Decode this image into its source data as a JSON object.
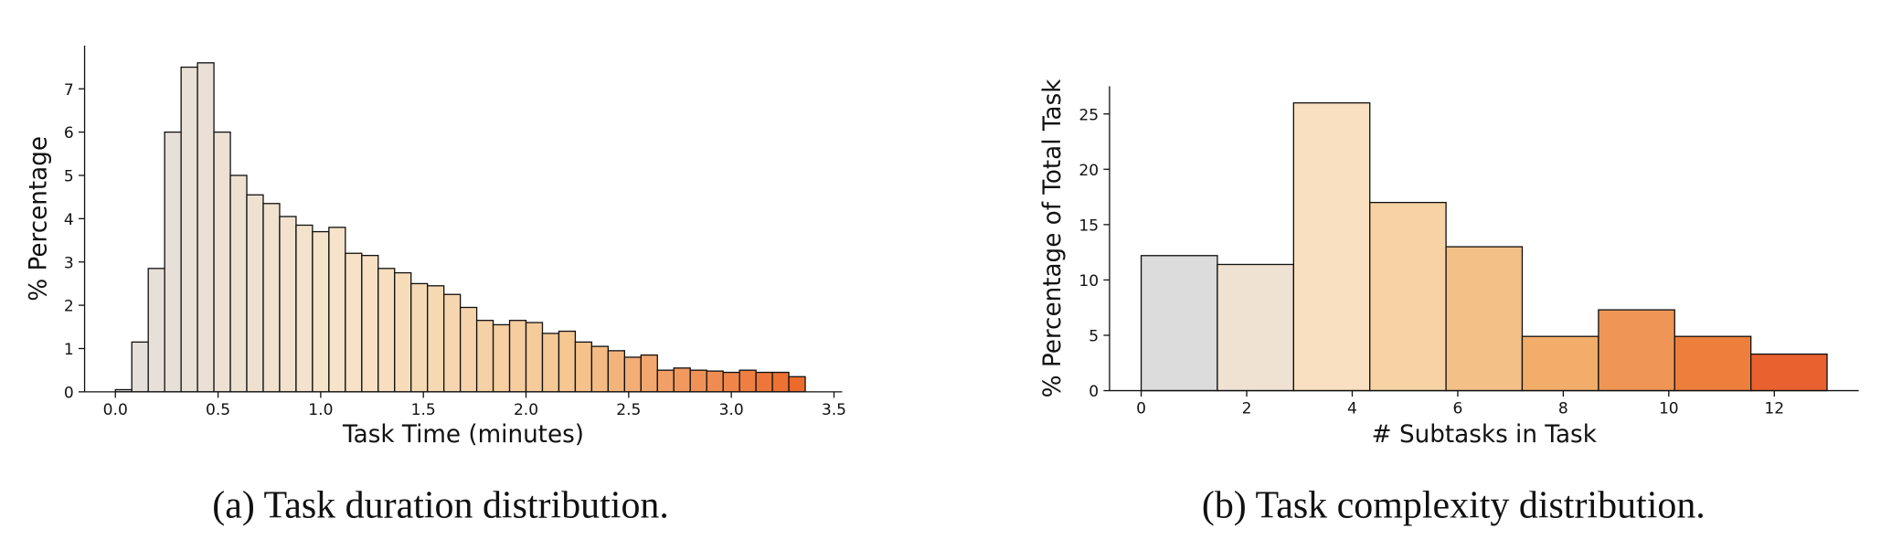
{
  "chart_data": [
    {
      "type": "histogram",
      "xlabel": "Task Time (minutes)",
      "ylabel": "% Percentage",
      "caption": "(a) Task duration distribution.",
      "bins": [
        0,
        0.08,
        0.16,
        0.24,
        0.32,
        0.4,
        0.48,
        0.56,
        0.64,
        0.72,
        0.8,
        0.88,
        0.96,
        1.04,
        1.12,
        1.2,
        1.28,
        1.36,
        1.44,
        1.52,
        1.6,
        1.68,
        1.76,
        1.84,
        1.92,
        2.0,
        2.08,
        2.16,
        2.24,
        2.32,
        2.4,
        2.48,
        2.56,
        2.64,
        2.72,
        2.8,
        2.88,
        2.96,
        3.04,
        3.12,
        3.2,
        3.28,
        3.36
      ],
      "values": [
        0.05,
        1.15,
        2.85,
        6.0,
        7.5,
        7.6,
        6.0,
        5.0,
        4.55,
        4.35,
        4.05,
        3.85,
        3.7,
        3.8,
        3.2,
        3.15,
        2.85,
        2.75,
        2.5,
        2.45,
        2.25,
        1.95,
        1.65,
        1.55,
        1.65,
        1.6,
        1.35,
        1.4,
        1.15,
        1.05,
        0.95,
        0.8,
        0.85,
        0.5,
        0.55,
        0.5,
        0.48,
        0.45,
        0.5,
        0.45,
        0.45,
        0.35
      ],
      "color_stops": [
        "#e3dfdc",
        "#f7e3c8",
        "#f5c690",
        "#ec6a2c"
      ],
      "xlim": [
        -0.15,
        3.54
      ],
      "xticks": [
        {
          "value": 0,
          "label": "0.0"
        },
        0.5,
        {
          "value": 1,
          "label": "1.0"
        },
        1.5,
        {
          "value": 2,
          "label": "2.0"
        },
        2.5,
        {
          "value": 3,
          "label": "3.0"
        },
        3.5
      ],
      "ylim": [
        0,
        8
      ],
      "yticks": [
        0,
        1,
        2,
        3,
        4,
        5,
        6,
        7
      ]
    },
    {
      "type": "histogram",
      "xlabel": "# Subtasks in Task",
      "ylabel": "% Percentage of Total Task",
      "caption": "(b) Task complexity distribution.",
      "bins": [
        0,
        1.444,
        2.889,
        4.333,
        5.778,
        7.222,
        8.667,
        10.111,
        11.556,
        13
      ],
      "values": [
        12.2,
        11.4,
        26,
        17,
        13,
        4.9,
        7.3,
        4.9,
        3.3
      ],
      "colors": [
        "#dcdcdc",
        "#f0e2d3",
        "#f9e0c0",
        "#f7d2a4",
        "#f3c088",
        "#f2ad6a",
        "#ef9657",
        "#ed7e3c",
        "#e9612e"
      ],
      "xlim": [
        -0.6,
        13.6
      ],
      "xticks": [
        0,
        2,
        4,
        6,
        8,
        10,
        12
      ],
      "ylim": [
        0,
        27.5
      ],
      "yticks": [
        0,
        5,
        10,
        15,
        20,
        25
      ]
    }
  ]
}
